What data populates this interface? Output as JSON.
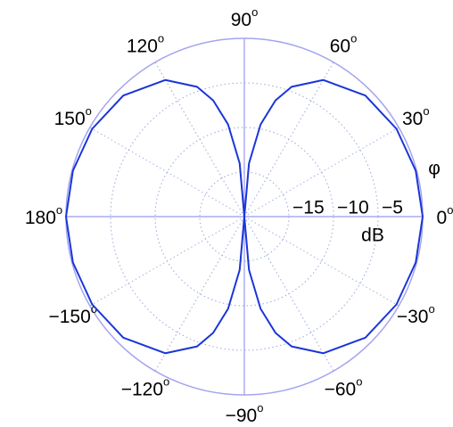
{
  "chart_data": {
    "type": "polar",
    "theta": [
      0,
      15,
      30,
      45,
      60,
      70,
      75,
      80,
      85,
      90,
      95,
      100,
      105,
      110,
      120,
      135,
      150,
      165,
      180,
      195,
      210,
      225,
      240,
      250,
      255,
      260,
      265,
      270,
      275,
      280,
      285,
      290,
      300,
      315,
      330,
      345,
      360
    ],
    "r": [
      0,
      -0.1,
      -0.3,
      -0.8,
      -2.3,
      -4.5,
      -6.5,
      -9.5,
      -14,
      -20,
      -14,
      -9.5,
      -6.5,
      -4.5,
      -2.3,
      -0.8,
      -0.3,
      -0.1,
      0,
      -0.1,
      -0.3,
      -0.8,
      -2.3,
      -4.5,
      -6.5,
      -9.5,
      -14,
      -20,
      -14,
      -9.5,
      -6.5,
      -4.5,
      -2.3,
      -0.8,
      -0.3,
      -0.1,
      0
    ],
    "color": "#1a35d8",
    "rlim": [
      -20,
      0
    ],
    "rticks": [
      {
        "value": -15,
        "label": "−15"
      },
      {
        "value": -10,
        "label": "−10"
      },
      {
        "value": -5,
        "label": "−5"
      }
    ],
    "thetaticks": [
      0,
      30,
      60,
      90,
      120,
      150,
      180,
      {
        "value": -150,
        "label": "−150"
      },
      {
        "value": -120,
        "label": "−120"
      },
      {
        "value": -90,
        "label": "−90"
      },
      {
        "value": -60,
        "label": "−60"
      },
      {
        "value": -30,
        "label": "−30"
      }
    ],
    "degree_mark": "o",
    "theta_label": "φ",
    "r_label": "dB",
    "grid": true
  }
}
